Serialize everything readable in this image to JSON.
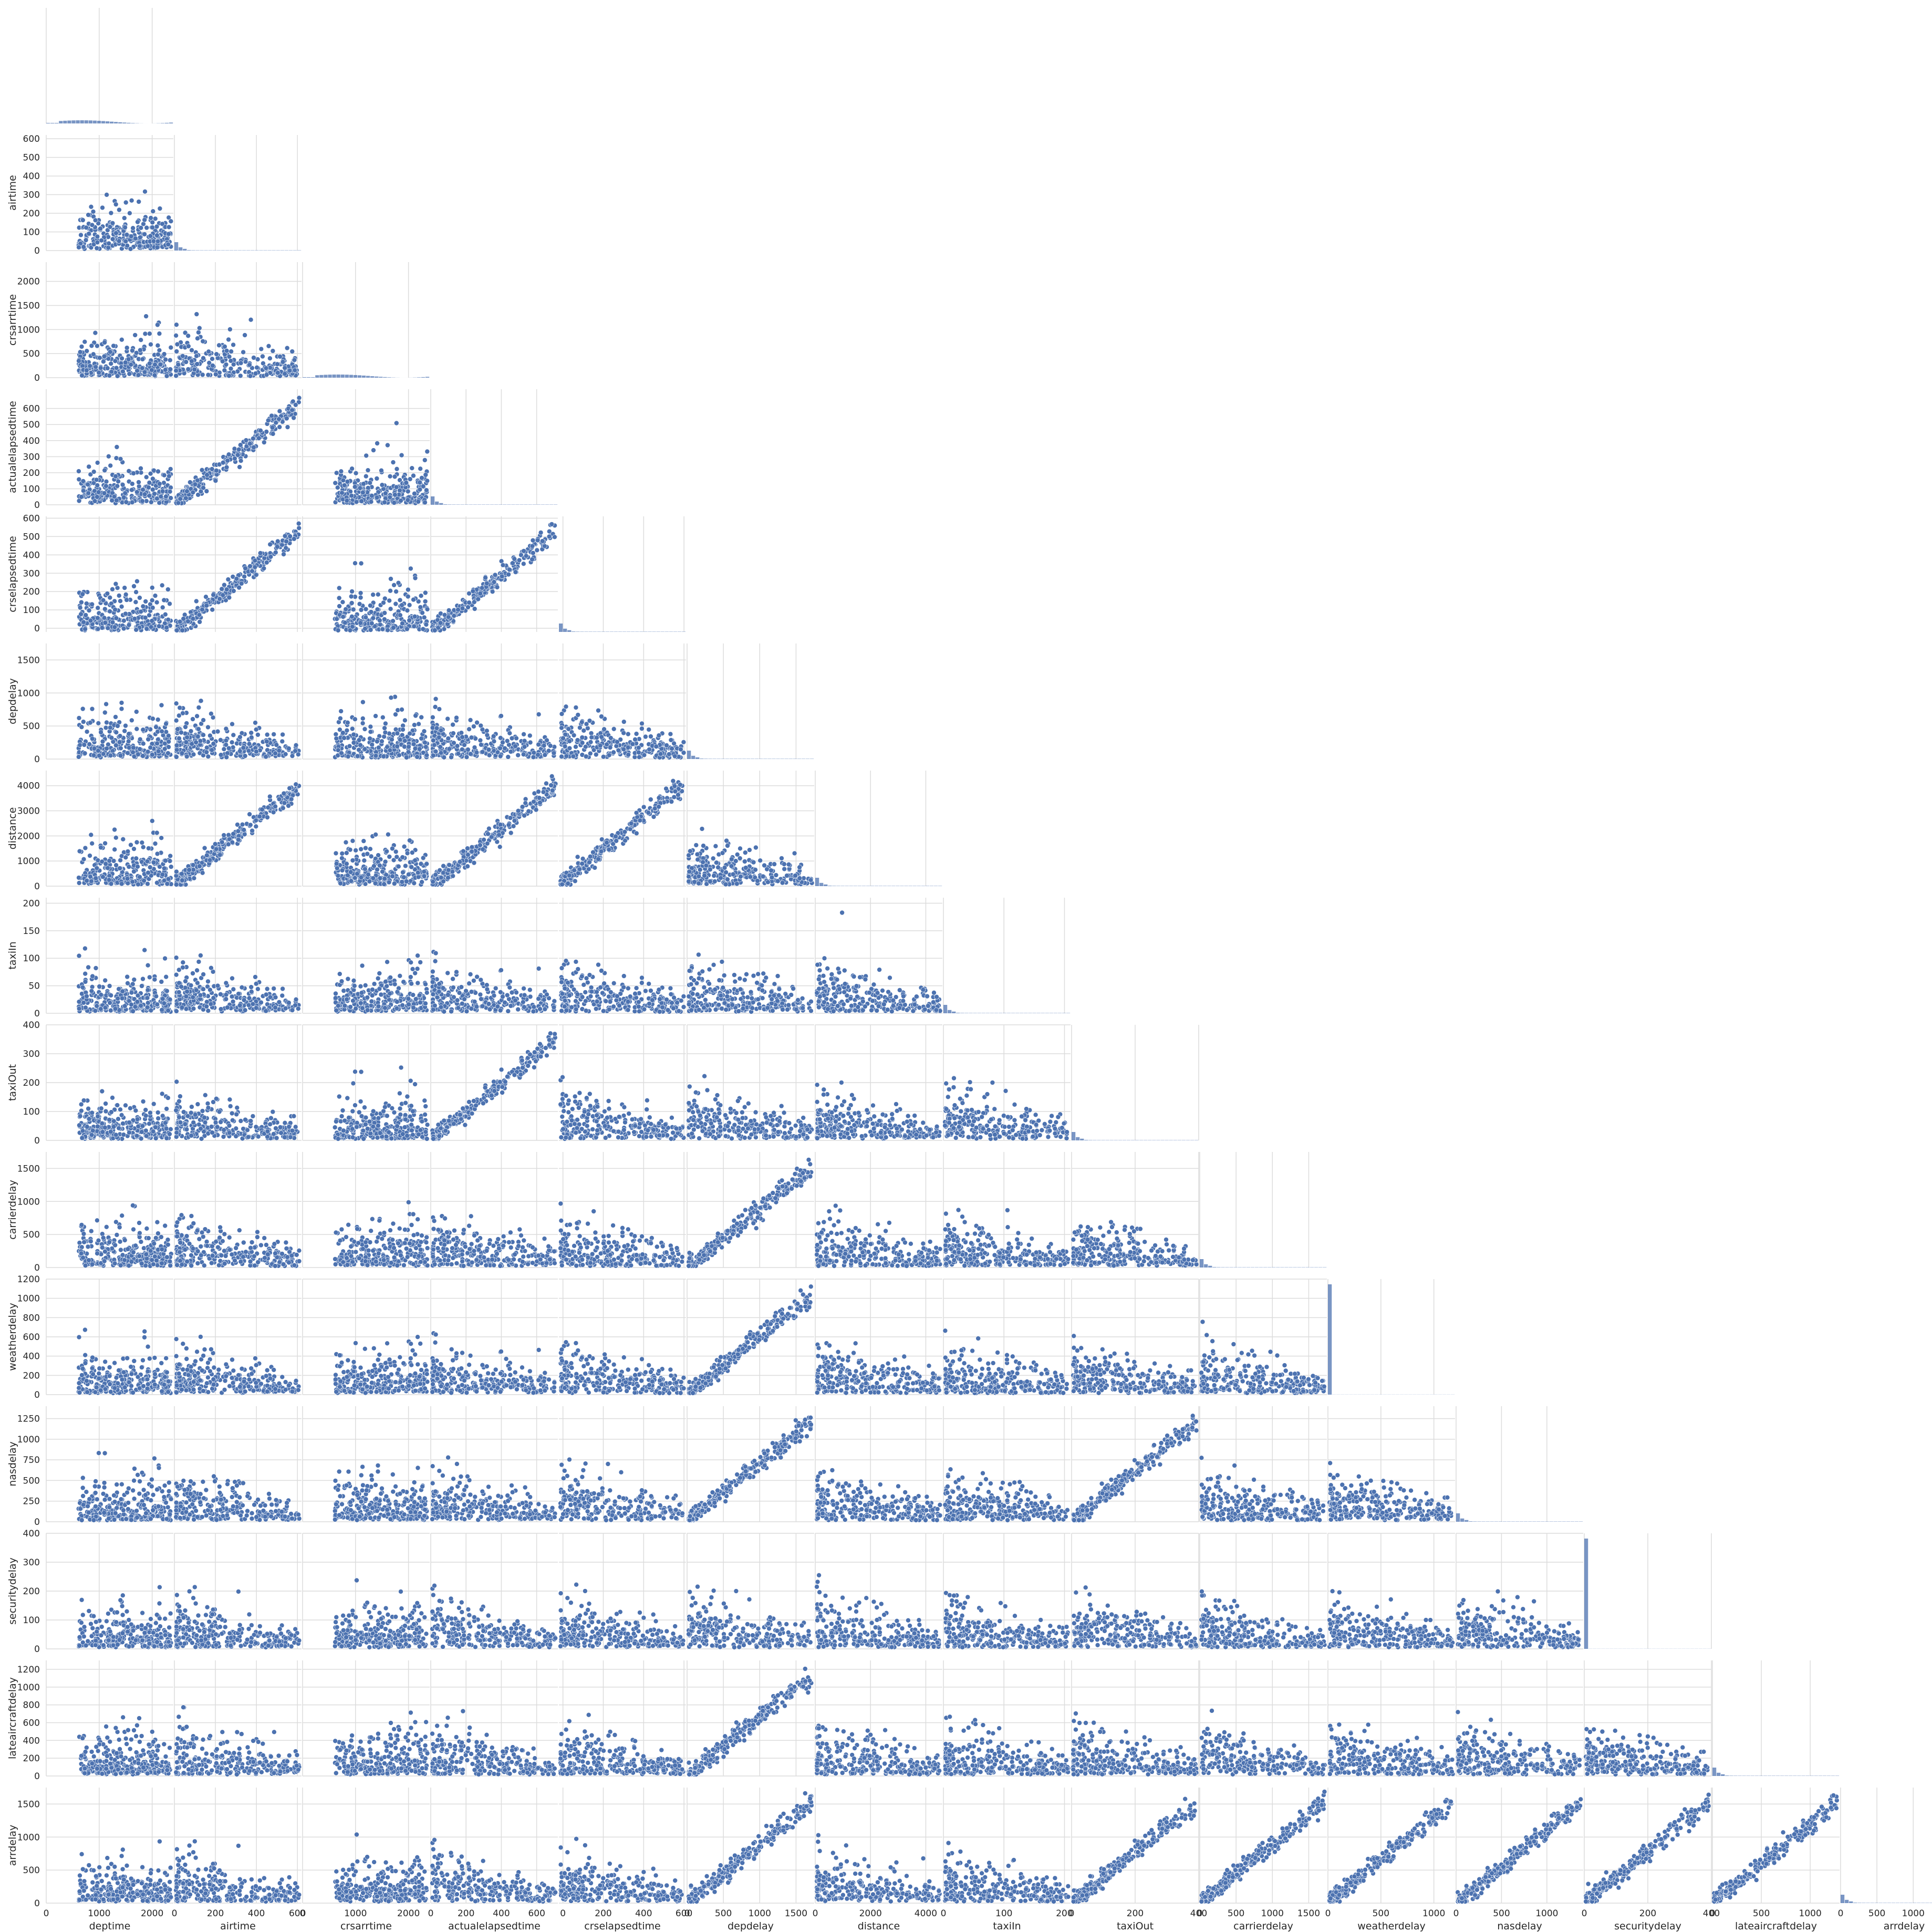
{
  "chart_data": {
    "type": "scatter",
    "subtype": "pairplot-lower-triangle",
    "grid": true,
    "diagonal": "histogram",
    "marker_color": "#4c72b0",
    "variables": [
      {
        "name": "deptime",
        "range": [
          0,
          2400
        ],
        "ticks": [
          0,
          1000,
          2000
        ]
      },
      {
        "name": "airtime",
        "range": [
          0,
          620
        ],
        "ticks": [
          0,
          100,
          200,
          300,
          400,
          500,
          600
        ],
        "x_ticks": [
          0,
          200,
          400,
          600
        ]
      },
      {
        "name": "crsarrtime",
        "range": [
          0,
          2400
        ],
        "ticks": [
          0,
          500,
          1000,
          1500,
          2000
        ],
        "x_ticks": [
          0,
          1000,
          2000
        ]
      },
      {
        "name": "actualelapsedtime",
        "range": [
          0,
          720
        ],
        "ticks": [
          0,
          100,
          200,
          300,
          400,
          500,
          600
        ],
        "x_ticks": [
          0,
          200,
          400,
          600
        ]
      },
      {
        "name": "crselapsedtime",
        "range": [
          -20,
          610
        ],
        "ticks": [
          0,
          100,
          200,
          300,
          400,
          500,
          600
        ],
        "x_ticks": [
          0,
          200,
          400,
          600
        ]
      },
      {
        "name": "depdelay",
        "range": [
          0,
          1750
        ],
        "ticks": [
          0,
          500,
          1000,
          1500
        ]
      },
      {
        "name": "distance",
        "range": [
          0,
          4600
        ],
        "ticks": [
          0,
          1000,
          2000,
          3000,
          4000
        ],
        "x_ticks": [
          0,
          2000,
          4000
        ]
      },
      {
        "name": "taxiIn",
        "range": [
          0,
          210
        ],
        "ticks": [
          0,
          50,
          100,
          150,
          200
        ],
        "x_ticks": [
          0,
          100,
          200
        ]
      },
      {
        "name": "taxiOut",
        "range": [
          0,
          400
        ],
        "ticks": [
          0,
          100,
          200,
          300,
          400
        ],
        "x_ticks": [
          0,
          200,
          400
        ]
      },
      {
        "name": "carrierdelay",
        "range": [
          0,
          1750
        ],
        "ticks": [
          0,
          500,
          1000,
          1500
        ]
      },
      {
        "name": "weatherdelay",
        "range": [
          0,
          1200
        ],
        "ticks": [
          0,
          200,
          400,
          600,
          800,
          1000,
          1200
        ],
        "x_ticks": [
          0,
          500,
          1000
        ]
      },
      {
        "name": "nasdelay",
        "range": [
          0,
          1400
        ],
        "ticks": [
          0,
          250,
          500,
          750,
          1000,
          1250
        ],
        "x_ticks": [
          0,
          500,
          1000
        ]
      },
      {
        "name": "securitydelay",
        "range": [
          0,
          400
        ],
        "ticks": [
          0,
          100,
          200,
          300,
          400
        ],
        "x_ticks": [
          0,
          200,
          400
        ]
      },
      {
        "name": "lateaircraftdelay",
        "range": [
          0,
          1300
        ],
        "ticks": [
          0,
          200,
          400,
          600,
          800,
          1000,
          1200
        ],
        "x_ticks": [
          0,
          500,
          1000
        ]
      },
      {
        "name": "arrdelay",
        "range": [
          0,
          1750
        ],
        "ticks": [
          0,
          500,
          1000,
          1500
        ]
      }
    ],
    "relationships": {
      "linear": [
        [
          "airtime",
          "actualelapsedtime"
        ],
        [
          "airtime",
          "crselapsedtime"
        ],
        [
          "actualelapsedtime",
          "crselapsedtime"
        ],
        [
          "airtime",
          "distance"
        ],
        [
          "actualelapsedtime",
          "distance"
        ],
        [
          "crselapsedtime",
          "distance"
        ],
        [
          "depdelay",
          "carrierdelay"
        ],
        [
          "depdelay",
          "weatherdelay"
        ],
        [
          "depdelay",
          "nasdelay"
        ],
        [
          "depdelay",
          "lateaircraftdelay"
        ],
        [
          "depdelay",
          "arrdelay"
        ],
        [
          "carrierdelay",
          "arrdelay"
        ],
        [
          "weatherdelay",
          "arrdelay"
        ],
        [
          "nasdelay",
          "arrdelay"
        ],
        [
          "securitydelay",
          "arrdelay"
        ],
        [
          "lateaircraftdelay",
          "arrdelay"
        ],
        [
          "actualelapsedtime",
          "taxiOut"
        ],
        [
          "taxiOut",
          "nasdelay"
        ],
        [
          "taxiOut",
          "arrdelay"
        ]
      ]
    }
  }
}
